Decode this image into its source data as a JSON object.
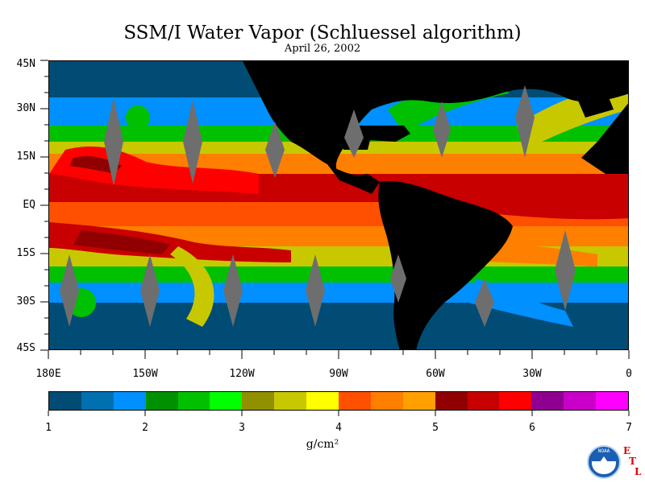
{
  "title": "SSM/I Water Vapor (Schluessel algorithm)",
  "subtitle": "April 26, 2002",
  "map": {
    "lat_labels": [
      "45N",
      "30N",
      "15N",
      "EQ",
      "15S",
      "30S",
      "45S"
    ],
    "lon_labels": [
      "180E",
      "150W",
      "120W",
      "90W",
      "60W",
      "30W",
      "0"
    ],
    "land_color": "#000000",
    "missing_data_color": "#6e6e6e"
  },
  "colorbar": {
    "colors": [
      "#004c74",
      "#0070b0",
      "#0090ff",
      "#009000",
      "#00c000",
      "#00ff00",
      "#909000",
      "#c8c800",
      "#ffff00",
      "#ff5000",
      "#ff7f00",
      "#ffa000",
      "#900000",
      "#c80000",
      "#ff0000",
      "#900090",
      "#c800c8",
      "#ff00ff"
    ],
    "tick_labels": [
      "1",
      "2",
      "3",
      "4",
      "5",
      "6",
      "7"
    ],
    "unit": "g/cm²"
  },
  "logo": {
    "name": "NOAA",
    "lab_letters": [
      "E",
      "T",
      "L"
    ]
  }
}
